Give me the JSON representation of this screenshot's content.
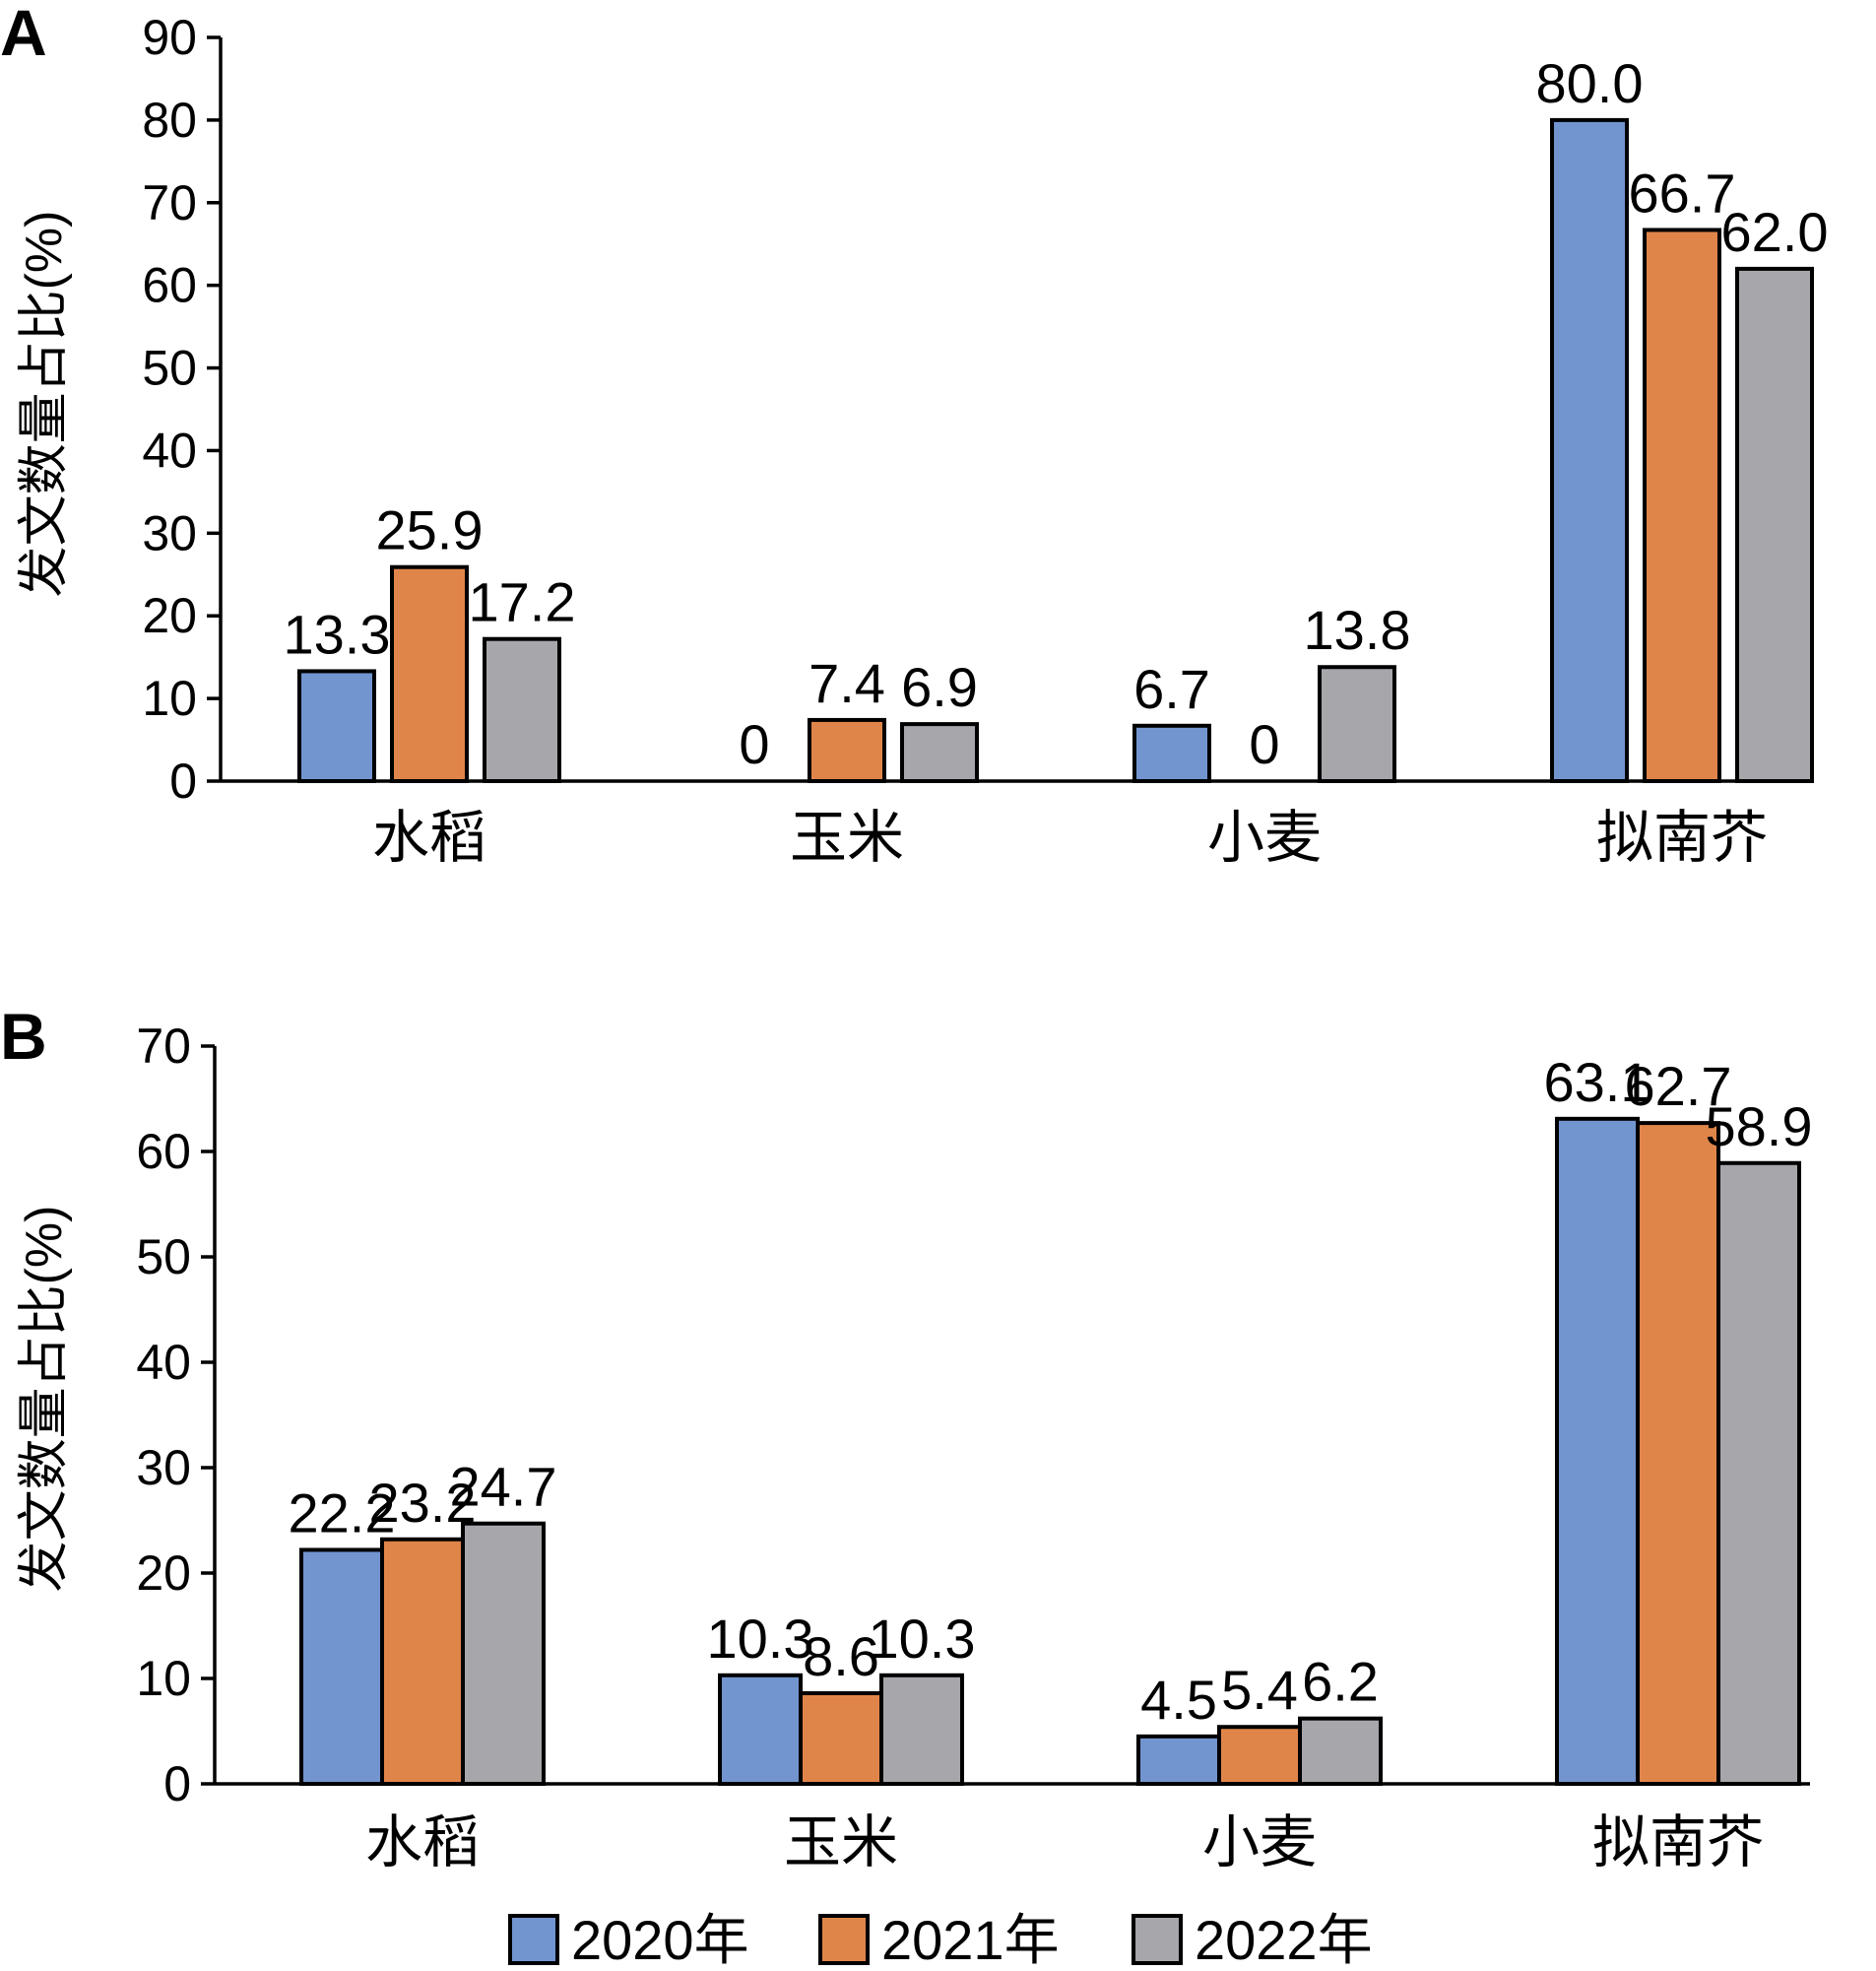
{
  "chart_data": [
    {
      "panel": "A",
      "type": "bar",
      "ylabel": "发文数量占比(%)",
      "ylim": [
        0,
        90
      ],
      "yticks": [
        0,
        10,
        20,
        30,
        40,
        50,
        60,
        70,
        80,
        90
      ],
      "categories": [
        "水稻",
        "玉米",
        "小麦",
        "拟南芥"
      ],
      "series": [
        {
          "name": "2020年",
          "values": [
            13.3,
            0,
            6.7,
            80.0
          ],
          "labels": [
            "13.3",
            "0",
            "6.7",
            "80.0"
          ]
        },
        {
          "name": "2021年",
          "values": [
            25.9,
            7.4,
            0,
            66.7
          ],
          "labels": [
            "25.9",
            "7.4",
            "0",
            "66.7"
          ]
        },
        {
          "name": "2022年",
          "values": [
            17.2,
            6.9,
            13.8,
            62.0
          ],
          "labels": [
            "17.2",
            "6.9",
            "13.8",
            "62.0"
          ]
        }
      ]
    },
    {
      "panel": "B",
      "type": "bar",
      "ylabel": "发文数量占比(%)",
      "ylim": [
        0,
        70
      ],
      "yticks": [
        0,
        10,
        20,
        30,
        40,
        50,
        60,
        70
      ],
      "categories": [
        "水稻",
        "玉米",
        "小麦",
        "拟南芥"
      ],
      "series": [
        {
          "name": "2020年",
          "values": [
            22.2,
            10.3,
            4.5,
            63.1
          ],
          "labels": [
            "22.2",
            "10.3",
            "4.5",
            "63.1"
          ]
        },
        {
          "name": "2021年",
          "values": [
            23.2,
            8.6,
            5.4,
            62.7
          ],
          "labels": [
            "23.2",
            "8.6",
            "5.4",
            "62.7"
          ]
        },
        {
          "name": "2022年",
          "values": [
            24.7,
            10.3,
            6.2,
            58.9
          ],
          "labels": [
            "24.7",
            "10.3",
            "6.2",
            "58.9"
          ]
        }
      ]
    }
  ],
  "legend": {
    "placement": "bottom",
    "items": [
      {
        "label": "2020年",
        "color": "#7295d0"
      },
      {
        "label": "2021年",
        "color": "#e0854a"
      },
      {
        "label": "2022年",
        "color": "#a7a6ab"
      }
    ]
  },
  "colors": {
    "2020年": "#7295d0",
    "2021年": "#e0854a",
    "2022年": "#a7a6ab"
  }
}
